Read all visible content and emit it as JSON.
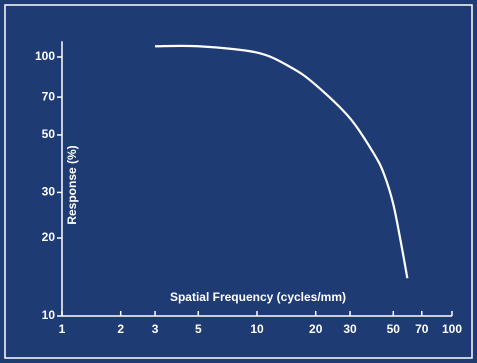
{
  "chart_data": {
    "type": "line",
    "x_label": "Spatial Frequency (cycles/mm)",
    "y_label": "Response (%)",
    "x": [
      3,
      5,
      10,
      15,
      20,
      30,
      40,
      45,
      50,
      55,
      59
    ],
    "values": [
      110,
      110,
      104,
      91,
      78,
      58,
      42,
      35,
      27,
      18.8,
      14
    ],
    "color": "#ffffff",
    "xlog": true,
    "ylog": true,
    "xlim": [
      1,
      100
    ],
    "ylim": [
      10,
      115
    ],
    "xticks": [
      1,
      2,
      3,
      5,
      10,
      20,
      30,
      50,
      70,
      100
    ],
    "yticks": [
      10,
      20,
      30,
      50,
      70,
      100
    ]
  }
}
